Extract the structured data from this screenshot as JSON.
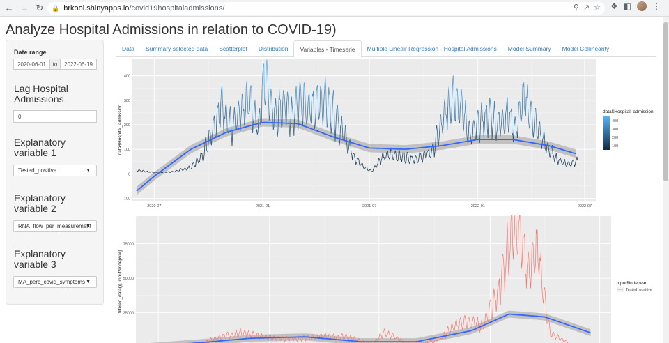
{
  "browser": {
    "url_domain": "brkooi.shinyapps.io",
    "url_path": "/covid19hospitaladmissions/"
  },
  "page": {
    "title": "Analyze Hospital Admissions in relation to COVID-19)"
  },
  "sidebar": {
    "date_range_label": "Date range",
    "date_start": "2020-06-01",
    "date_to": "to",
    "date_end": "2022-06-19",
    "lag_label": "Lag Hospital Admissions",
    "lag_value": "0",
    "var1_label": "Explanatory variable 1",
    "var1_value": "Tested_positive",
    "var2_label": "Explanatory variable 2",
    "var2_value": "RNA_flow_per_measurement",
    "var3_label": "Explanatory variable 3",
    "var3_value": "MA_perc_covid_symptoms"
  },
  "tabs": [
    {
      "label": "Data",
      "active": false
    },
    {
      "label": "Summary selected data",
      "active": false
    },
    {
      "label": "Scatterplot",
      "active": false
    },
    {
      "label": "Distribution",
      "active": false
    },
    {
      "label": "Variables - Timeserie",
      "active": true
    },
    {
      "label": "Multiple Lineair Regression - Hospital Admissions",
      "active": false
    },
    {
      "label": "Model Summary",
      "active": false
    },
    {
      "label": "Model Collinearity",
      "active": false
    }
  ],
  "chart_data": [
    {
      "type": "line",
      "ylabel": "data$Hospital_admission",
      "xlabel": "",
      "x_ticks": [
        "2020-07",
        "2021-01",
        "2021-07",
        "2022-01",
        "2022-07"
      ],
      "y_ticks": [
        -100,
        0,
        100,
        200,
        300,
        400
      ],
      "ylim": [
        -110,
        470
      ],
      "legend_title": "data$Hospital_admission",
      "legend_ticks": [
        100,
        200,
        300,
        400
      ],
      "legend_position": "right",
      "colors": {
        "low": "#132b43",
        "high": "#56b1f7",
        "smooth": "#3366ff",
        "band": "#b7b7b7"
      },
      "series": [
        {
          "name": "Hospital_admission",
          "x": [
            "2020-06-01",
            "2020-07-01",
            "2020-08-01",
            "2020-09-01",
            "2020-09-20",
            "2020-10-10",
            "2020-10-25",
            "2020-11-10",
            "2020-11-25",
            "2020-12-10",
            "2020-12-25",
            "2021-01-05",
            "2021-01-20",
            "2021-02-05",
            "2021-02-20",
            "2021-03-05",
            "2021-03-20",
            "2021-04-05",
            "2021-04-20",
            "2021-05-05",
            "2021-05-20",
            "2021-06-05",
            "2021-06-20",
            "2021-07-05",
            "2021-07-20",
            "2021-08-05",
            "2021-08-25",
            "2021-09-20",
            "2021-10-15",
            "2021-11-01",
            "2021-11-20",
            "2021-12-05",
            "2021-12-20",
            "2022-01-05",
            "2022-01-20",
            "2022-02-05",
            "2022-02-20",
            "2022-03-05",
            "2022-03-20",
            "2022-04-05",
            "2022-04-25",
            "2022-05-15",
            "2022-06-01",
            "2022-06-19"
          ],
          "y": [
            15,
            5,
            8,
            25,
            70,
            200,
            280,
            180,
            240,
            300,
            190,
            410,
            240,
            280,
            230,
            300,
            260,
            290,
            310,
            220,
            160,
            70,
            30,
            10,
            60,
            80,
            70,
            60,
            90,
            200,
            340,
            260,
            150,
            210,
            240,
            200,
            250,
            180,
            300,
            220,
            120,
            60,
            40,
            50
          ]
        },
        {
          "name": "smooth",
          "x": [
            "2020-06-01",
            "2020-07-01",
            "2020-09-01",
            "2020-11-01",
            "2021-01-01",
            "2021-03-01",
            "2021-05-01",
            "2021-07-01",
            "2021-09-01",
            "2021-11-01",
            "2022-01-01",
            "2022-03-01",
            "2022-05-01",
            "2022-06-19"
          ],
          "y": [
            -70,
            -10,
            100,
            170,
            210,
            205,
            150,
            105,
            100,
            115,
            140,
            140,
            115,
            80
          ]
        }
      ]
    },
    {
      "type": "line",
      "ylabel": "filtered_data()[, input$indepvar]",
      "xlabel": "",
      "y_ticks": [
        25000,
        50000,
        75000
      ],
      "ylim": [
        0,
        95000
      ],
      "legend_title": "input$indepvar",
      "legend_entries": [
        "Tested_positive"
      ],
      "legend_position": "right",
      "colors": {
        "line": "#f8766d",
        "smooth": "#3366ff",
        "band": "#b7b7b7"
      },
      "series": [
        {
          "name": "Tested_positive",
          "x": [
            "2020-06-01",
            "2020-09-01",
            "2020-10-15",
            "2020-11-15",
            "2021-01-01",
            "2021-02-15",
            "2021-04-01",
            "2021-05-15",
            "2021-06-20",
            "2021-07-10",
            "2021-08-15",
            "2021-10-01",
            "2021-11-20",
            "2021-12-20",
            "2022-01-15",
            "2022-02-01",
            "2022-02-15",
            "2022-03-05",
            "2022-03-20",
            "2022-04-10",
            "2022-05-15",
            "2022-06-19"
          ],
          "y": [
            300,
            1500,
            8000,
            10000,
            7000,
            6000,
            8000,
            7000,
            2000,
            11000,
            3000,
            4000,
            20000,
            15000,
            40000,
            75000,
            92000,
            55000,
            70000,
            10000,
            2000,
            1500
          ]
        },
        {
          "name": "smooth",
          "x": [
            "2020-06-01",
            "2020-09-01",
            "2020-12-01",
            "2021-03-01",
            "2021-06-01",
            "2021-09-01",
            "2021-12-01",
            "2022-02-01",
            "2022-04-01",
            "2022-06-19"
          ],
          "y": [
            0,
            3000,
            6500,
            7500,
            4000,
            4000,
            12000,
            24000,
            22000,
            10000
          ]
        }
      ]
    }
  ]
}
